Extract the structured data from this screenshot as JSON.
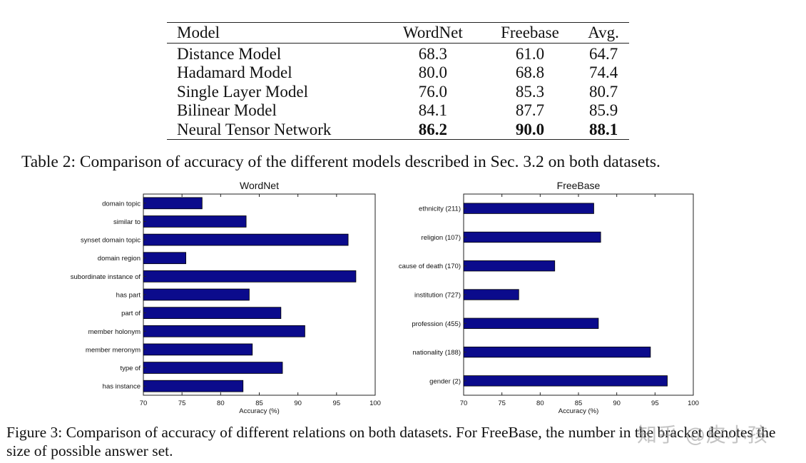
{
  "table": {
    "headers": [
      "Model",
      "WordNet",
      "Freebase",
      "Avg."
    ],
    "rows": [
      {
        "model": "Distance Model",
        "wordnet": "68.3",
        "freebase": "61.0",
        "avg": "64.7"
      },
      {
        "model": "Hadamard Model",
        "wordnet": "80.0",
        "freebase": "68.8",
        "avg": "74.4"
      },
      {
        "model": "Single Layer Model",
        "wordnet": "76.0",
        "freebase": "85.3",
        "avg": "80.7"
      },
      {
        "model": "Bilinear Model",
        "wordnet": "84.1",
        "freebase": "87.7",
        "avg": "85.9"
      },
      {
        "model": "Neural Tensor Network",
        "wordnet": "86.2",
        "freebase": "90.0",
        "avg": "88.1"
      }
    ],
    "caption": "Table 2: Comparison of accuracy of the different models described in Sec. 3.2 on both datasets."
  },
  "chart_data": [
    {
      "type": "bar",
      "orientation": "horizontal",
      "title": "WordNet",
      "xlabel": "Accuracy (%)",
      "xlim": [
        70,
        100
      ],
      "xticks": [
        "70",
        "75",
        "80",
        "85",
        "90",
        "95",
        "100"
      ],
      "categories": [
        "domain topic",
        "similar to",
        "synset domain topic",
        "domain region",
        "subordinate instance of",
        "has part",
        "part of",
        "member holonym",
        "member meronym",
        "type of",
        "has instance"
      ],
      "values": [
        77.6,
        83.3,
        96.5,
        75.5,
        97.5,
        83.7,
        87.8,
        90.9,
        84.1,
        88.0,
        82.9
      ],
      "bar_color": "#0b0b8c",
      "grid": false
    },
    {
      "type": "bar",
      "orientation": "horizontal",
      "title": "FreeBase",
      "xlabel": "Accuracy (%)",
      "xlim": [
        70,
        100
      ],
      "xticks": [
        "70",
        "75",
        "80",
        "85",
        "90",
        "95",
        "100"
      ],
      "categories": [
        "ethnicity (211)",
        "religion (107)",
        "cause of death (170)",
        "institution (727)",
        "profession (455)",
        "nationality (188)",
        "gender (2)"
      ],
      "values": [
        87.0,
        87.9,
        81.9,
        77.2,
        87.6,
        94.4,
        96.6
      ],
      "bar_color": "#0b0b8c",
      "grid": false
    }
  ],
  "figure_caption": "Figure 3: Comparison of accuracy of different relations on both datasets. For FreeBase, the number in the bracket denotes the size of possible answer set.",
  "watermark": "知乎 @皮小孩"
}
